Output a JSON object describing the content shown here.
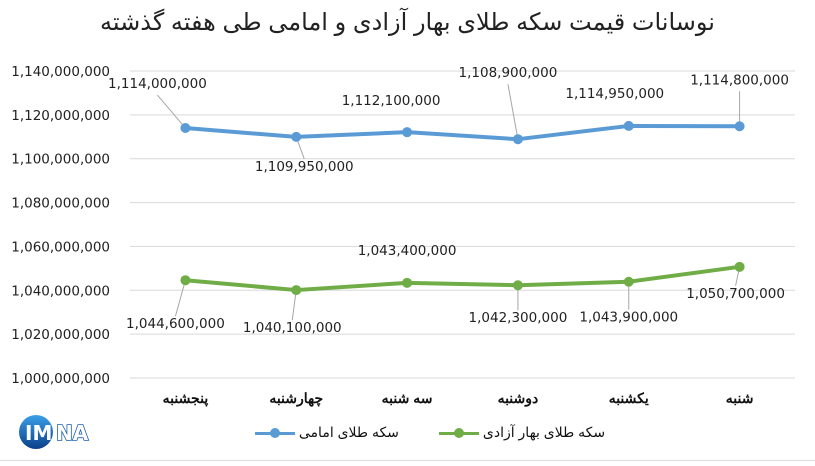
{
  "title": "نوسانات قیمت سکه طلای بهار آزادی و امامی طی هفته گذشته",
  "legend": {
    "emami": "سکه طلای امامی",
    "bahar": "سکه طلای بهار آزادی"
  },
  "logo": {
    "text": "IMNA",
    "icon": "imna-logo-icon"
  },
  "colors": {
    "emami": "#5b9bd5",
    "bahar": "#70ad47",
    "grid": "#d9d9d9",
    "leader": "#a6a6a6"
  },
  "yaxis": {
    "ticks": [
      "1,140,000,000",
      "1,120,000,000",
      "1,100,000,000",
      "1,080,000,000",
      "1,060,000,000",
      "1,040,000,000",
      "1,020,000,000",
      "1,000,000,000"
    ]
  },
  "xaxis": {
    "ticks": [
      "شنبه",
      "یکشنبه",
      "دوشنبه",
      "سه شنبه",
      "چهارشنبه",
      "پنجشنبه"
    ]
  },
  "labels": {
    "emami": [
      "1,114,800,000",
      "1,114,950,000",
      "1,108,900,000",
      "1,112,100,000",
      "1,109,950,000",
      "1,114,000,000"
    ],
    "bahar": [
      "1,050,700,000",
      "1,043,900,000",
      "1,042,300,000",
      "1,043,400,000",
      "1,040,100,000",
      "1,044,600,000"
    ]
  },
  "chart_data": {
    "type": "line",
    "title": "نوسانات قیمت سکه طلای بهار آزادی و امامی طی هفته گذشته",
    "categories": [
      "شنبه",
      "یکشنبه",
      "دوشنبه",
      "سه شنبه",
      "چهارشنبه",
      "پنجشنبه"
    ],
    "series": [
      {
        "name": "سکه طلای امامی",
        "color": "#5b9bd5",
        "values": [
          1114800000,
          1114950000,
          1108900000,
          1112100000,
          1109950000,
          1114000000
        ]
      },
      {
        "name": "سکه طلای بهار آزادی",
        "color": "#70ad47",
        "values": [
          1050700000,
          1043900000,
          1042300000,
          1043400000,
          1040100000,
          1044600000
        ]
      }
    ],
    "xlabel": "",
    "ylabel": "",
    "ylim": [
      1000000000,
      1140000000
    ],
    "ytick_step": 20000000,
    "grid": true,
    "legend_position": "bottom",
    "data_labels": true
  }
}
